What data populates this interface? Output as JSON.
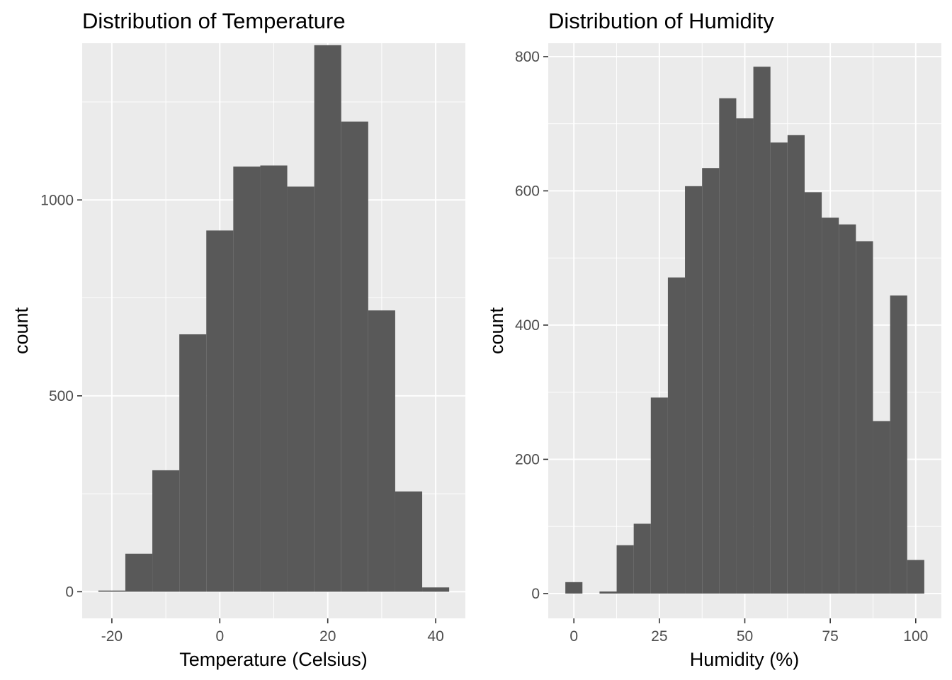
{
  "chart_data": [
    {
      "type": "bar",
      "title": "Distribution of Temperature",
      "xlabel": "Temperature (Celsius)",
      "ylabel": "count",
      "xlim": [
        -25.5,
        45.5
      ],
      "ylim": [
        -68,
        1400
      ],
      "x_ticks": [
        -20,
        0,
        20,
        40
      ],
      "x_minor_ticks": [
        -10,
        10,
        30
      ],
      "y_ticks": [
        0,
        500,
        1000
      ],
      "y_minor_ticks": [
        250,
        750,
        1250
      ],
      "x_tick_labels": [
        "-20",
        "0",
        "20",
        "40"
      ],
      "y_tick_labels": [
        "0",
        "500",
        "1000"
      ],
      "grid": true,
      "bins": [
        {
          "start": -22.5,
          "end": -17.5,
          "count": 3
        },
        {
          "start": -17.5,
          "end": -12.5,
          "count": 97
        },
        {
          "start": -12.5,
          "end": -7.5,
          "count": 310
        },
        {
          "start": -7.5,
          "end": -2.5,
          "count": 657
        },
        {
          "start": -2.5,
          "end": 2.5,
          "count": 922
        },
        {
          "start": 2.5,
          "end": 7.5,
          "count": 1085
        },
        {
          "start": 7.5,
          "end": 12.5,
          "count": 1088
        },
        {
          "start": 12.5,
          "end": 17.5,
          "count": 1034
        },
        {
          "start": 17.5,
          "end": 22.5,
          "count": 1395
        },
        {
          "start": 22.5,
          "end": 27.5,
          "count": 1200
        },
        {
          "start": 27.5,
          "end": 32.5,
          "count": 718
        },
        {
          "start": 32.5,
          "end": 37.5,
          "count": 256
        },
        {
          "start": 37.5,
          "end": 42.5,
          "count": 11
        }
      ]
    },
    {
      "type": "bar",
      "title": "Distribution of Humidity",
      "xlabel": "Humidity (%)",
      "ylabel": "count",
      "xlim": [
        -7.5,
        107.5
      ],
      "ylim": [
        -37,
        820
      ],
      "x_ticks": [
        0,
        25,
        50,
        75,
        100
      ],
      "x_minor_ticks": [
        12.5,
        37.5,
        62.5,
        87.5
      ],
      "y_ticks": [
        0,
        200,
        400,
        600,
        800
      ],
      "y_minor_ticks": [
        100,
        300,
        500,
        700
      ],
      "x_tick_labels": [
        "0",
        "25",
        "50",
        "75",
        "100"
      ],
      "y_tick_labels": [
        "0",
        "200",
        "400",
        "600",
        "800"
      ],
      "grid": true,
      "bins": [
        {
          "start": -2.5,
          "end": 2.5,
          "count": 17
        },
        {
          "start": 7.5,
          "end": 12.5,
          "count": 3
        },
        {
          "start": 12.5,
          "end": 17.5,
          "count": 72
        },
        {
          "start": 17.5,
          "end": 22.5,
          "count": 104
        },
        {
          "start": 22.5,
          "end": 27.5,
          "count": 292
        },
        {
          "start": 27.5,
          "end": 32.5,
          "count": 471
        },
        {
          "start": 32.5,
          "end": 37.5,
          "count": 607
        },
        {
          "start": 37.5,
          "end": 42.5,
          "count": 634
        },
        {
          "start": 42.5,
          "end": 47.5,
          "count": 738
        },
        {
          "start": 47.5,
          "end": 52.5,
          "count": 708
        },
        {
          "start": 52.5,
          "end": 57.5,
          "count": 785
        },
        {
          "start": 57.5,
          "end": 62.5,
          "count": 672
        },
        {
          "start": 62.5,
          "end": 67.5,
          "count": 683
        },
        {
          "start": 67.5,
          "end": 72.5,
          "count": 598
        },
        {
          "start": 72.5,
          "end": 77.5,
          "count": 560
        },
        {
          "start": 77.5,
          "end": 82.5,
          "count": 550
        },
        {
          "start": 82.5,
          "end": 87.5,
          "count": 525
        },
        {
          "start": 87.5,
          "end": 92.5,
          "count": 257
        },
        {
          "start": 92.5,
          "end": 97.5,
          "count": 444
        },
        {
          "start": 97.5,
          "end": 102.5,
          "count": 50
        }
      ]
    }
  ]
}
